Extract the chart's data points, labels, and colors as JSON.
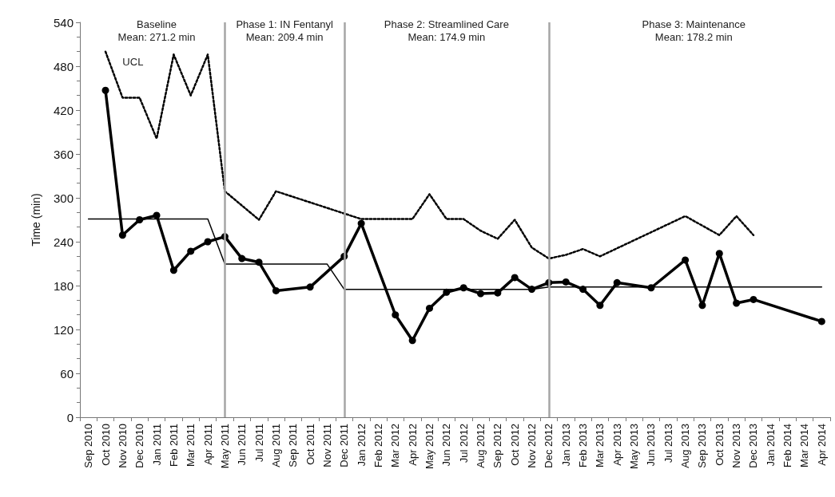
{
  "chart_data": {
    "type": "line",
    "ylabel": "Time (min)",
    "categories": [
      "Sep 2010",
      "Oct 2010",
      "Nov 2010",
      "Dec 2010",
      "Jan 2011",
      "Feb 2011",
      "Mar 2011",
      "Apr 2011",
      "May 2011",
      "Jun 2011",
      "Jul 2011",
      "Aug 2011",
      "Sep 2011",
      "Oct 2011",
      "Nov 2011",
      "Dec 2011",
      "Jan 2012",
      "Feb 2012",
      "Mar 2012",
      "Apr 2012",
      "May 2012",
      "Jun 2012",
      "Jul 2012",
      "Aug 2012",
      "Sep 2012",
      "Oct 2012",
      "Nov 2012",
      "Dec 2012",
      "Jan 2013",
      "Feb 2013",
      "Mar 2013",
      "Apr 2013",
      "May 2013",
      "Jun 2013",
      "Jul 2013",
      "Aug 2013",
      "Sep 2013",
      "Oct 2013",
      "Nov 2013",
      "Dec 2013",
      "Jan 2014",
      "Feb 2014",
      "Mar 2014",
      "Apr 2014"
    ],
    "series": [
      {
        "color": "#000000",
        "marker": "circle",
        "line_style": "solid",
        "values": [
          null,
          447,
          249,
          270,
          276,
          201,
          227,
          240,
          247,
          217,
          212,
          173,
          null,
          178,
          null,
          220,
          265,
          null,
          140,
          105,
          149,
          171,
          177,
          169,
          170,
          191,
          175,
          184,
          185,
          175,
          153,
          184,
          null,
          177,
          null,
          215,
          153,
          224,
          156,
          161,
          null,
          null,
          null,
          131
        ]
      },
      {
        "name": "UCL",
        "color": "#000000",
        "marker": "none",
        "line_style": "dotted",
        "values": [
          null,
          500,
          437,
          437,
          381,
          496,
          440,
          496,
          309,
          null,
          270,
          309,
          null,
          null,
          null,
          null,
          271,
          271,
          271,
          271,
          305,
          271,
          271,
          255,
          244,
          270,
          232,
          217,
          222,
          230,
          220,
          null,
          null,
          null,
          null,
          275,
          null,
          249,
          275,
          249,
          null,
          null,
          null,
          null
        ]
      },
      {
        "color": "#000000",
        "marker": "none",
        "line_style": "solid",
        "values": [
          271.2,
          271.2,
          271.2,
          271.2,
          271.2,
          271.2,
          271.2,
          271.2,
          209.4,
          209.4,
          209.4,
          209.4,
          209.4,
          209.4,
          209.4,
          174.9,
          174.9,
          174.9,
          174.9,
          174.9,
          174.9,
          174.9,
          174.9,
          174.9,
          174.9,
          174.9,
          174.9,
          178.2,
          178.2,
          178.2,
          178.2,
          178.2,
          178.2,
          178.2,
          178.2,
          178.2,
          178.2,
          178.2,
          178.2,
          178.2,
          178.2,
          178.2,
          178.2,
          178.2
        ]
      }
    ],
    "ylim": [
      0,
      540
    ],
    "yticks": [
      0,
      60,
      120,
      180,
      240,
      300,
      360,
      420,
      480,
      540
    ],
    "grid": false,
    "ref_lines": [
      {
        "axis": "x",
        "value": "May 2011",
        "color": "#a6a6a6",
        "line_style": "solid"
      },
      {
        "axis": "x",
        "value": "Dec 2011",
        "color": "#a6a6a6",
        "line_style": "solid"
      },
      {
        "axis": "x",
        "value": "Dec 2012",
        "color": "#a6a6a6",
        "line_style": "solid"
      }
    ],
    "annotations": [
      "Baseline\nMean: 271.2 min",
      "Phase 1: IN Fentanyl\nMean: 209.4 min",
      "Phase 2: Streamlined Care\nMean: 174.9 min",
      "Phase 3: Maintenance\nMean: 178.2 min"
    ]
  }
}
